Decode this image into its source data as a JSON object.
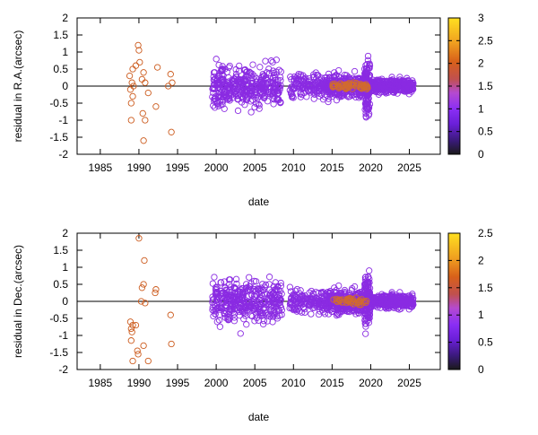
{
  "chart_data": [
    {
      "type": "scatter",
      "xlabel": "date",
      "ylabel": "residual in R.A.(arcsec)",
      "xlim": [
        1982,
        2029
      ],
      "ylim": [
        -2,
        2
      ],
      "x_ticks": [
        "1985",
        "1990",
        "1995",
        "2000",
        "2005",
        "2010",
        "2015",
        "2020",
        "2025"
      ],
      "y_ticks": [
        "-2",
        "-1.5",
        "-1",
        "-0.5",
        "0",
        "0.5",
        "1",
        "1.5",
        "2"
      ],
      "colorbar": {
        "min": 0,
        "max": 3,
        "ticks": [
          "0",
          "0.5",
          "1",
          "1.5",
          "2",
          "2.5",
          "3"
        ]
      },
      "grid": false,
      "zero_line": true,
      "marker": "open-circle",
      "points": [
        [
          1988.8,
          0.3,
          1.6
        ],
        [
          1988.9,
          -0.1,
          1.6
        ],
        [
          1989.0,
          -0.5,
          1.6
        ],
        [
          1989.1,
          0.1,
          1.6
        ],
        [
          1989.2,
          -0.3,
          1.6
        ],
        [
          1989.3,
          0.0,
          1.6
        ],
        [
          1989.2,
          0.5,
          1.6
        ],
        [
          1989.0,
          -1.0,
          1.6
        ],
        [
          1989.6,
          0.6,
          1.6
        ],
        [
          1989.9,
          1.2,
          1.6
        ],
        [
          1990.0,
          1.05,
          1.6
        ],
        [
          1990.1,
          0.7,
          1.6
        ],
        [
          1990.4,
          0.2,
          1.6
        ],
        [
          1990.5,
          -0.8,
          1.6
        ],
        [
          1990.6,
          -1.6,
          1.6
        ],
        [
          1990.6,
          0.4,
          1.6
        ],
        [
          1990.8,
          0.1,
          1.6
        ],
        [
          1990.8,
          -1.0,
          1.6
        ],
        [
          1991.2,
          -0.2,
          1.6
        ],
        [
          1992.2,
          -0.6,
          1.6
        ],
        [
          1992.4,
          0.55,
          1.6
        ],
        [
          1993.8,
          0.0,
          1.6
        ],
        [
          1994.1,
          0.35,
          1.6
        ],
        [
          1994.2,
          -1.35,
          1.6
        ],
        [
          1994.3,
          0.1,
          1.6
        ]
      ]
    },
    {
      "type": "scatter",
      "xlabel": "date",
      "ylabel": "residual in Dec.(arcsec)",
      "xlim": [
        1982,
        2029
      ],
      "ylim": [
        -2,
        2
      ],
      "x_ticks": [
        "1985",
        "1990",
        "1995",
        "2000",
        "2005",
        "2010",
        "2015",
        "2020",
        "2025"
      ],
      "y_ticks": [
        "-2",
        "-1.5",
        "-1",
        "-0.5",
        "0",
        "0.5",
        "1",
        "1.5",
        "2"
      ],
      "colorbar": {
        "min": 0,
        "max": 2.5,
        "ticks": [
          "0",
          "0.5",
          "1",
          "1.5",
          "2",
          "2.5"
        ]
      },
      "grid": false,
      "zero_line": true,
      "marker": "open-circle",
      "points": [
        [
          1988.9,
          -0.6,
          1.6
        ],
        [
          1989.0,
          -0.8,
          1.6
        ],
        [
          1989.1,
          -0.9,
          1.6
        ],
        [
          1989.2,
          -0.7,
          1.6
        ],
        [
          1989.0,
          -1.15,
          1.6
        ],
        [
          1989.2,
          -1.75,
          1.6
        ],
        [
          1989.6,
          -0.7,
          1.6
        ],
        [
          1989.8,
          -1.45,
          1.6
        ],
        [
          1989.9,
          -1.55,
          1.6
        ],
        [
          1990.0,
          1.85,
          1.6
        ],
        [
          1990.3,
          0.0,
          1.6
        ],
        [
          1990.4,
          0.4,
          1.6
        ],
        [
          1990.6,
          0.5,
          1.6
        ],
        [
          1990.7,
          1.2,
          1.6
        ],
        [
          1990.8,
          -0.05,
          1.6
        ],
        [
          1990.6,
          -1.3,
          1.6
        ],
        [
          1991.2,
          -1.75,
          1.6
        ],
        [
          1992.1,
          0.25,
          1.6
        ],
        [
          1992.2,
          0.35,
          1.6
        ],
        [
          1994.1,
          -0.4,
          1.6
        ],
        [
          1994.2,
          -1.25,
          1.6
        ]
      ]
    }
  ]
}
